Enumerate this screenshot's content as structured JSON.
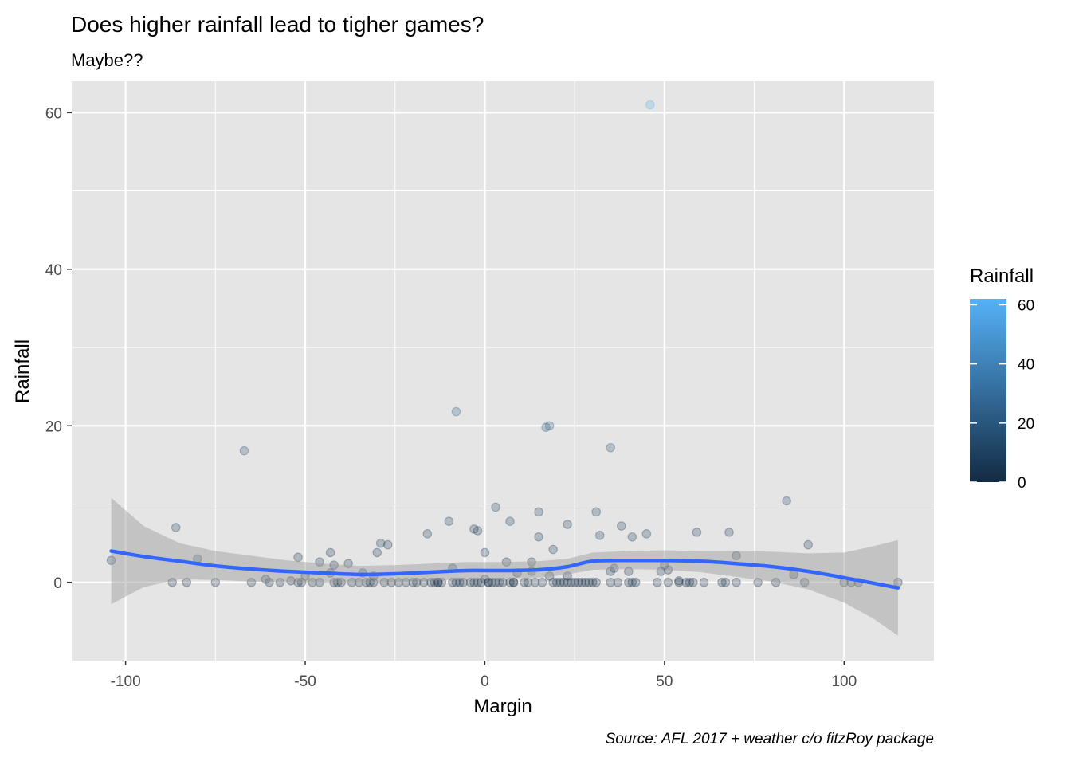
{
  "chart_data": {
    "type": "scatter",
    "title": "Does higher rainfall lead to tigher games?",
    "subtitle": "Maybe??",
    "caption": "Source: AFL 2017 + weather c/o fitzRoy package",
    "xlabel": "Margin",
    "ylabel": "Rainfall",
    "xlim": [
      -115,
      125
    ],
    "ylim": [
      -10,
      64
    ],
    "x_ticks": [
      -100,
      -50,
      0,
      50,
      100
    ],
    "x_tick_labels": [
      "-100",
      "-50",
      "0",
      "50",
      "100"
    ],
    "y_ticks": [
      0,
      20,
      40,
      60
    ],
    "y_tick_labels": [
      "0",
      "20",
      "40",
      "60"
    ],
    "grid": true,
    "legend": {
      "title": "Rainfall",
      "position": "right",
      "type": "colorbar",
      "range": [
        0,
        62
      ],
      "ticks": [
        0,
        20,
        40,
        60
      ],
      "tick_labels": [
        "0",
        "20",
        "40",
        "60"
      ],
      "low_color": "#132b43",
      "high_color": "#56b1f7"
    },
    "colors": {
      "panel": "#e5e5e5",
      "grid": "#ffffff",
      "smooth_line": "#3366ff",
      "confidence_band": "#999999"
    },
    "points": [
      {
        "x": -104,
        "y": 2.8
      },
      {
        "x": -87,
        "y": 0
      },
      {
        "x": -86,
        "y": 7.0
      },
      {
        "x": -83,
        "y": 0
      },
      {
        "x": -80,
        "y": 3.0
      },
      {
        "x": -75,
        "y": 0
      },
      {
        "x": -67,
        "y": 16.8
      },
      {
        "x": -65,
        "y": 0
      },
      {
        "x": -61,
        "y": 0.4
      },
      {
        "x": -60,
        "y": 0
      },
      {
        "x": -57,
        "y": 0
      },
      {
        "x": -54,
        "y": 0.2
      },
      {
        "x": -52,
        "y": 0
      },
      {
        "x": -52,
        "y": 3.2
      },
      {
        "x": -51,
        "y": 0
      },
      {
        "x": -50,
        "y": 0.8
      },
      {
        "x": -48,
        "y": 0
      },
      {
        "x": -46,
        "y": 0
      },
      {
        "x": -46,
        "y": 2.6
      },
      {
        "x": -43,
        "y": 3.8
      },
      {
        "x": -43,
        "y": 1.2
      },
      {
        "x": -42,
        "y": 0
      },
      {
        "x": -42,
        "y": 2.2
      },
      {
        "x": -41,
        "y": 0
      },
      {
        "x": -40,
        "y": 0
      },
      {
        "x": -38,
        "y": 2.4
      },
      {
        "x": -37,
        "y": 0
      },
      {
        "x": -35,
        "y": 0
      },
      {
        "x": -34,
        "y": 1.2
      },
      {
        "x": -33,
        "y": 0
      },
      {
        "x": -32,
        "y": 0
      },
      {
        "x": -31,
        "y": 0
      },
      {
        "x": -31,
        "y": 0.8
      },
      {
        "x": -30,
        "y": 3.8
      },
      {
        "x": -29,
        "y": 5.0
      },
      {
        "x": -28,
        "y": 0
      },
      {
        "x": -27,
        "y": 4.8
      },
      {
        "x": -26,
        "y": 0
      },
      {
        "x": -24,
        "y": 0
      },
      {
        "x": -22,
        "y": 0
      },
      {
        "x": -20,
        "y": 0
      },
      {
        "x": -19,
        "y": 0
      },
      {
        "x": -17,
        "y": 0
      },
      {
        "x": -16,
        "y": 6.2
      },
      {
        "x": -15,
        "y": 0
      },
      {
        "x": -14,
        "y": 0
      },
      {
        "x": -13,
        "y": 0
      },
      {
        "x": -13,
        "y": 0
      },
      {
        "x": -12,
        "y": 0
      },
      {
        "x": -10,
        "y": 7.8
      },
      {
        "x": -9,
        "y": 0
      },
      {
        "x": -9,
        "y": 1.8
      },
      {
        "x": -8,
        "y": 21.8
      },
      {
        "x": -8,
        "y": 0
      },
      {
        "x": -7,
        "y": 0
      },
      {
        "x": -6,
        "y": 0
      },
      {
        "x": -4,
        "y": 0
      },
      {
        "x": -3,
        "y": 0
      },
      {
        "x": -3,
        "y": 6.8
      },
      {
        "x": -2,
        "y": 6.6
      },
      {
        "x": -2,
        "y": 0
      },
      {
        "x": -1,
        "y": 0
      },
      {
        "x": 0,
        "y": 0.4
      },
      {
        "x": 0,
        "y": 3.8
      },
      {
        "x": 1,
        "y": 0
      },
      {
        "x": 1,
        "y": 0
      },
      {
        "x": 2,
        "y": 0
      },
      {
        "x": 3,
        "y": 0
      },
      {
        "x": 3,
        "y": 9.6
      },
      {
        "x": 4,
        "y": 0
      },
      {
        "x": 5,
        "y": 0
      },
      {
        "x": 6,
        "y": 2.6
      },
      {
        "x": 7,
        "y": 7.8
      },
      {
        "x": 7,
        "y": 0
      },
      {
        "x": 8,
        "y": 0
      },
      {
        "x": 8,
        "y": 0
      },
      {
        "x": 9,
        "y": 1.2
      },
      {
        "x": 11,
        "y": 0
      },
      {
        "x": 12,
        "y": 0
      },
      {
        "x": 13,
        "y": 1.4
      },
      {
        "x": 13,
        "y": 2.6
      },
      {
        "x": 14,
        "y": 0
      },
      {
        "x": 15,
        "y": 9.0
      },
      {
        "x": 15,
        "y": 5.8
      },
      {
        "x": 16,
        "y": 0
      },
      {
        "x": 17,
        "y": 19.8
      },
      {
        "x": 18,
        "y": 20.0
      },
      {
        "x": 18,
        "y": 0.8
      },
      {
        "x": 19,
        "y": 4.2
      },
      {
        "x": 19,
        "y": 0
      },
      {
        "x": 20,
        "y": 0
      },
      {
        "x": 21,
        "y": 0
      },
      {
        "x": 22,
        "y": 0
      },
      {
        "x": 23,
        "y": 0
      },
      {
        "x": 23,
        "y": 7.4
      },
      {
        "x": 23,
        "y": 0.8
      },
      {
        "x": 24,
        "y": 0
      },
      {
        "x": 25,
        "y": 0
      },
      {
        "x": 26,
        "y": 0
      },
      {
        "x": 27,
        "y": 0
      },
      {
        "x": 28,
        "y": 0
      },
      {
        "x": 29,
        "y": 0
      },
      {
        "x": 30,
        "y": 0
      },
      {
        "x": 31,
        "y": 0
      },
      {
        "x": 31,
        "y": 9.0
      },
      {
        "x": 32,
        "y": 6.0
      },
      {
        "x": 35,
        "y": 17.2
      },
      {
        "x": 35,
        "y": 0
      },
      {
        "x": 35,
        "y": 1.4
      },
      {
        "x": 36,
        "y": 1.8
      },
      {
        "x": 37,
        "y": 0
      },
      {
        "x": 38,
        "y": 7.2
      },
      {
        "x": 40,
        "y": 0
      },
      {
        "x": 40,
        "y": 1.4
      },
      {
        "x": 41,
        "y": 0
      },
      {
        "x": 41,
        "y": 5.8
      },
      {
        "x": 42,
        "y": 0
      },
      {
        "x": 45,
        "y": 6.2
      },
      {
        "x": 46,
        "y": 61.0
      },
      {
        "x": 48,
        "y": 0
      },
      {
        "x": 49,
        "y": 1.4
      },
      {
        "x": 50,
        "y": 2.2
      },
      {
        "x": 51,
        "y": 1.6
      },
      {
        "x": 51,
        "y": 0
      },
      {
        "x": 54,
        "y": 0
      },
      {
        "x": 54,
        "y": 0.2
      },
      {
        "x": 56,
        "y": 0
      },
      {
        "x": 57,
        "y": 0
      },
      {
        "x": 58,
        "y": 0
      },
      {
        "x": 59,
        "y": 6.4
      },
      {
        "x": 61,
        "y": 0
      },
      {
        "x": 66,
        "y": 0
      },
      {
        "x": 67,
        "y": 0
      },
      {
        "x": 68,
        "y": 6.4
      },
      {
        "x": 70,
        "y": 3.4
      },
      {
        "x": 70,
        "y": 0
      },
      {
        "x": 76,
        "y": 0
      },
      {
        "x": 81,
        "y": 0
      },
      {
        "x": 84,
        "y": 10.4
      },
      {
        "x": 86,
        "y": 1.0
      },
      {
        "x": 89,
        "y": 0
      },
      {
        "x": 90,
        "y": 4.8
      },
      {
        "x": 100,
        "y": 0
      },
      {
        "x": 102,
        "y": 0
      },
      {
        "x": 104,
        "y": 0
      },
      {
        "x": 115,
        "y": 0
      }
    ],
    "smooth": [
      {
        "x": -104,
        "y": 4.0,
        "lo": -2.8,
        "hi": 10.8
      },
      {
        "x": -95,
        "y": 3.3,
        "lo": -0.6,
        "hi": 7.2
      },
      {
        "x": -85,
        "y": 2.7,
        "lo": 0.4,
        "hi": 5.0
      },
      {
        "x": -75,
        "y": 2.1,
        "lo": 0.3,
        "hi": 4.0
      },
      {
        "x": -65,
        "y": 1.7,
        "lo": 0.1,
        "hi": 3.4
      },
      {
        "x": -55,
        "y": 1.4,
        "lo": 0.0,
        "hi": 2.8
      },
      {
        "x": -45,
        "y": 1.2,
        "lo": -0.1,
        "hi": 2.4
      },
      {
        "x": -35,
        "y": 1.0,
        "lo": -0.1,
        "hi": 2.1
      },
      {
        "x": -25,
        "y": 1.1,
        "lo": 0.0,
        "hi": 2.2
      },
      {
        "x": -15,
        "y": 1.3,
        "lo": 0.2,
        "hi": 2.4
      },
      {
        "x": -5,
        "y": 1.5,
        "lo": 0.4,
        "hi": 2.6
      },
      {
        "x": 5,
        "y": 1.5,
        "lo": 0.5,
        "hi": 2.6
      },
      {
        "x": 15,
        "y": 1.6,
        "lo": 0.6,
        "hi": 2.7
      },
      {
        "x": 23,
        "y": 2.0,
        "lo": 1.0,
        "hi": 3.0
      },
      {
        "x": 30,
        "y": 2.7,
        "lo": 1.6,
        "hi": 3.8
      },
      {
        "x": 40,
        "y": 2.8,
        "lo": 1.7,
        "hi": 4.0
      },
      {
        "x": 50,
        "y": 2.8,
        "lo": 1.6,
        "hi": 4.1
      },
      {
        "x": 60,
        "y": 2.7,
        "lo": 1.3,
        "hi": 4.0
      },
      {
        "x": 70,
        "y": 2.4,
        "lo": 0.7,
        "hi": 4.0
      },
      {
        "x": 80,
        "y": 2.0,
        "lo": 0.1,
        "hi": 3.9
      },
      {
        "x": 90,
        "y": 1.4,
        "lo": -0.9,
        "hi": 3.7
      },
      {
        "x": 100,
        "y": 0.6,
        "lo": -2.6,
        "hi": 3.8
      },
      {
        "x": 108,
        "y": -0.1,
        "lo": -4.6,
        "hi": 4.6
      },
      {
        "x": 115,
        "y": -0.7,
        "lo": -6.8,
        "hi": 5.4
      }
    ]
  }
}
